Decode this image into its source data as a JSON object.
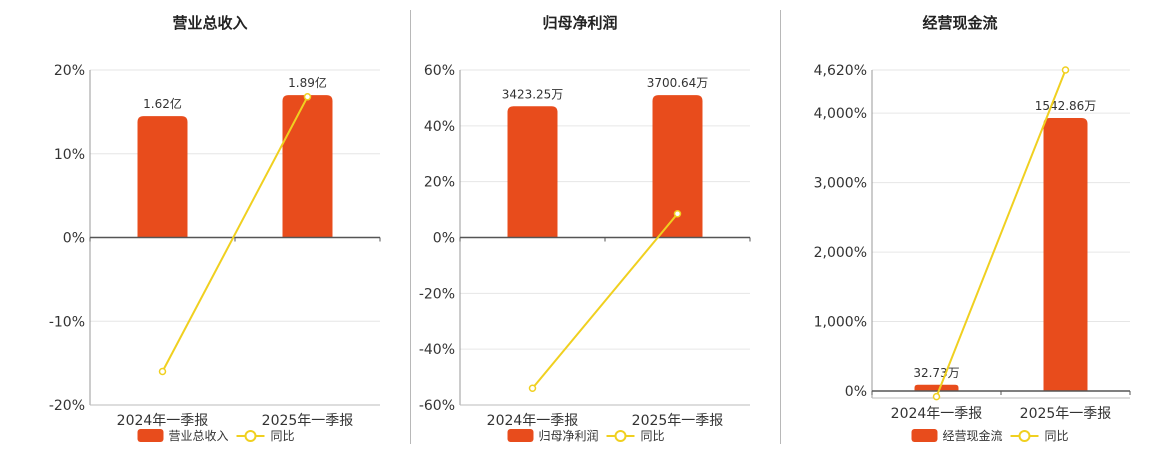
{
  "colors": {
    "bar": "#e84c1c",
    "line": "#f0d020",
    "axis": "#333333",
    "grid": "#e6e6e6",
    "text": "#333333"
  },
  "chart_data": [
    {
      "type": "bar",
      "title": "营业总收入",
      "categories": [
        "2024年一季报",
        "2025年一季报"
      ],
      "series": [
        {
          "name": "营业总收入",
          "axis": "left",
          "values": [
            14.5,
            17.0
          ],
          "labels": [
            "1.62亿",
            "1.89亿"
          ]
        },
        {
          "name": "同比",
          "type": "line",
          "values": [
            -16.0,
            16.8
          ]
        }
      ],
      "yticks": [
        "20%",
        "10%",
        "0%",
        "-10%",
        "-20%"
      ],
      "ylim": [
        -20,
        20
      ],
      "grid": true,
      "legend": "bottom"
    },
    {
      "type": "bar",
      "title": "归母净利润",
      "categories": [
        "2024年一季报",
        "2025年一季报"
      ],
      "series": [
        {
          "name": "归母净利润",
          "values": [
            47,
            51
          ],
          "labels": [
            "3423.25万",
            "3700.64万"
          ]
        },
        {
          "name": "同比",
          "type": "line",
          "values": [
            -54,
            8.5
          ]
        }
      ],
      "yticks": [
        "60%",
        "40%",
        "20%",
        "0%",
        "-20%",
        "-40%",
        "-60%"
      ],
      "ylim": [
        -60,
        60
      ],
      "grid": true,
      "legend": "bottom"
    },
    {
      "type": "bar",
      "title": "经营现金流",
      "categories": [
        "2024年一季报",
        "2025年一季报"
      ],
      "series": [
        {
          "name": "经营现金流",
          "values": [
            90,
            3930
          ],
          "labels": [
            "32.73万",
            "1542.86万"
          ]
        },
        {
          "name": "同比",
          "type": "line",
          "values": [
            -80,
            4620
          ]
        }
      ],
      "yticks": [
        "4,620%",
        "4,000%",
        "3,000%",
        "2,000%",
        "1,000%",
        "0%"
      ],
      "ylim": [
        -100,
        4620
      ],
      "grid": true,
      "legend": "bottom"
    }
  ]
}
